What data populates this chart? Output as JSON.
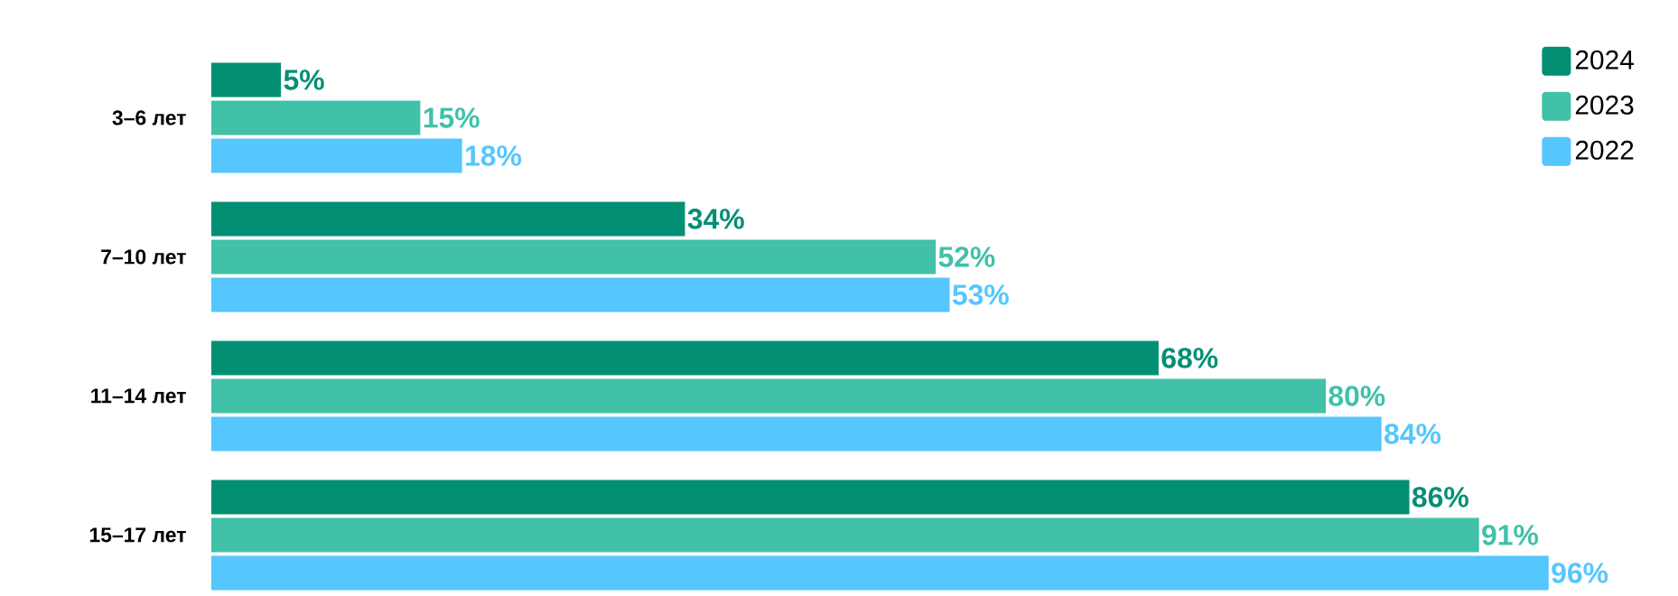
{
  "chart_data": {
    "type": "bar",
    "orientation": "horizontal",
    "categories": [
      "3–6 лет",
      "7–10 лет",
      "11–14 лет",
      "15–17 лет"
    ],
    "series": [
      {
        "name": "2024",
        "color": "#038f74",
        "values": [
          5,
          34,
          68,
          86
        ],
        "value_labels": [
          "5%",
          "34%",
          "68%",
          "86%"
        ]
      },
      {
        "name": "2023",
        "color": "#40c1a8",
        "values": [
          15,
          52,
          80,
          91
        ],
        "value_labels": [
          "15%",
          "52%",
          "80%",
          "91%"
        ]
      },
      {
        "name": "2022",
        "color": "#55c6fe",
        "values": [
          18,
          53,
          84,
          96
        ],
        "value_labels": [
          "18%",
          "53%",
          "84%",
          "96%"
        ]
      }
    ],
    "tick_labels": "y",
    "legend": "top right"
  }
}
